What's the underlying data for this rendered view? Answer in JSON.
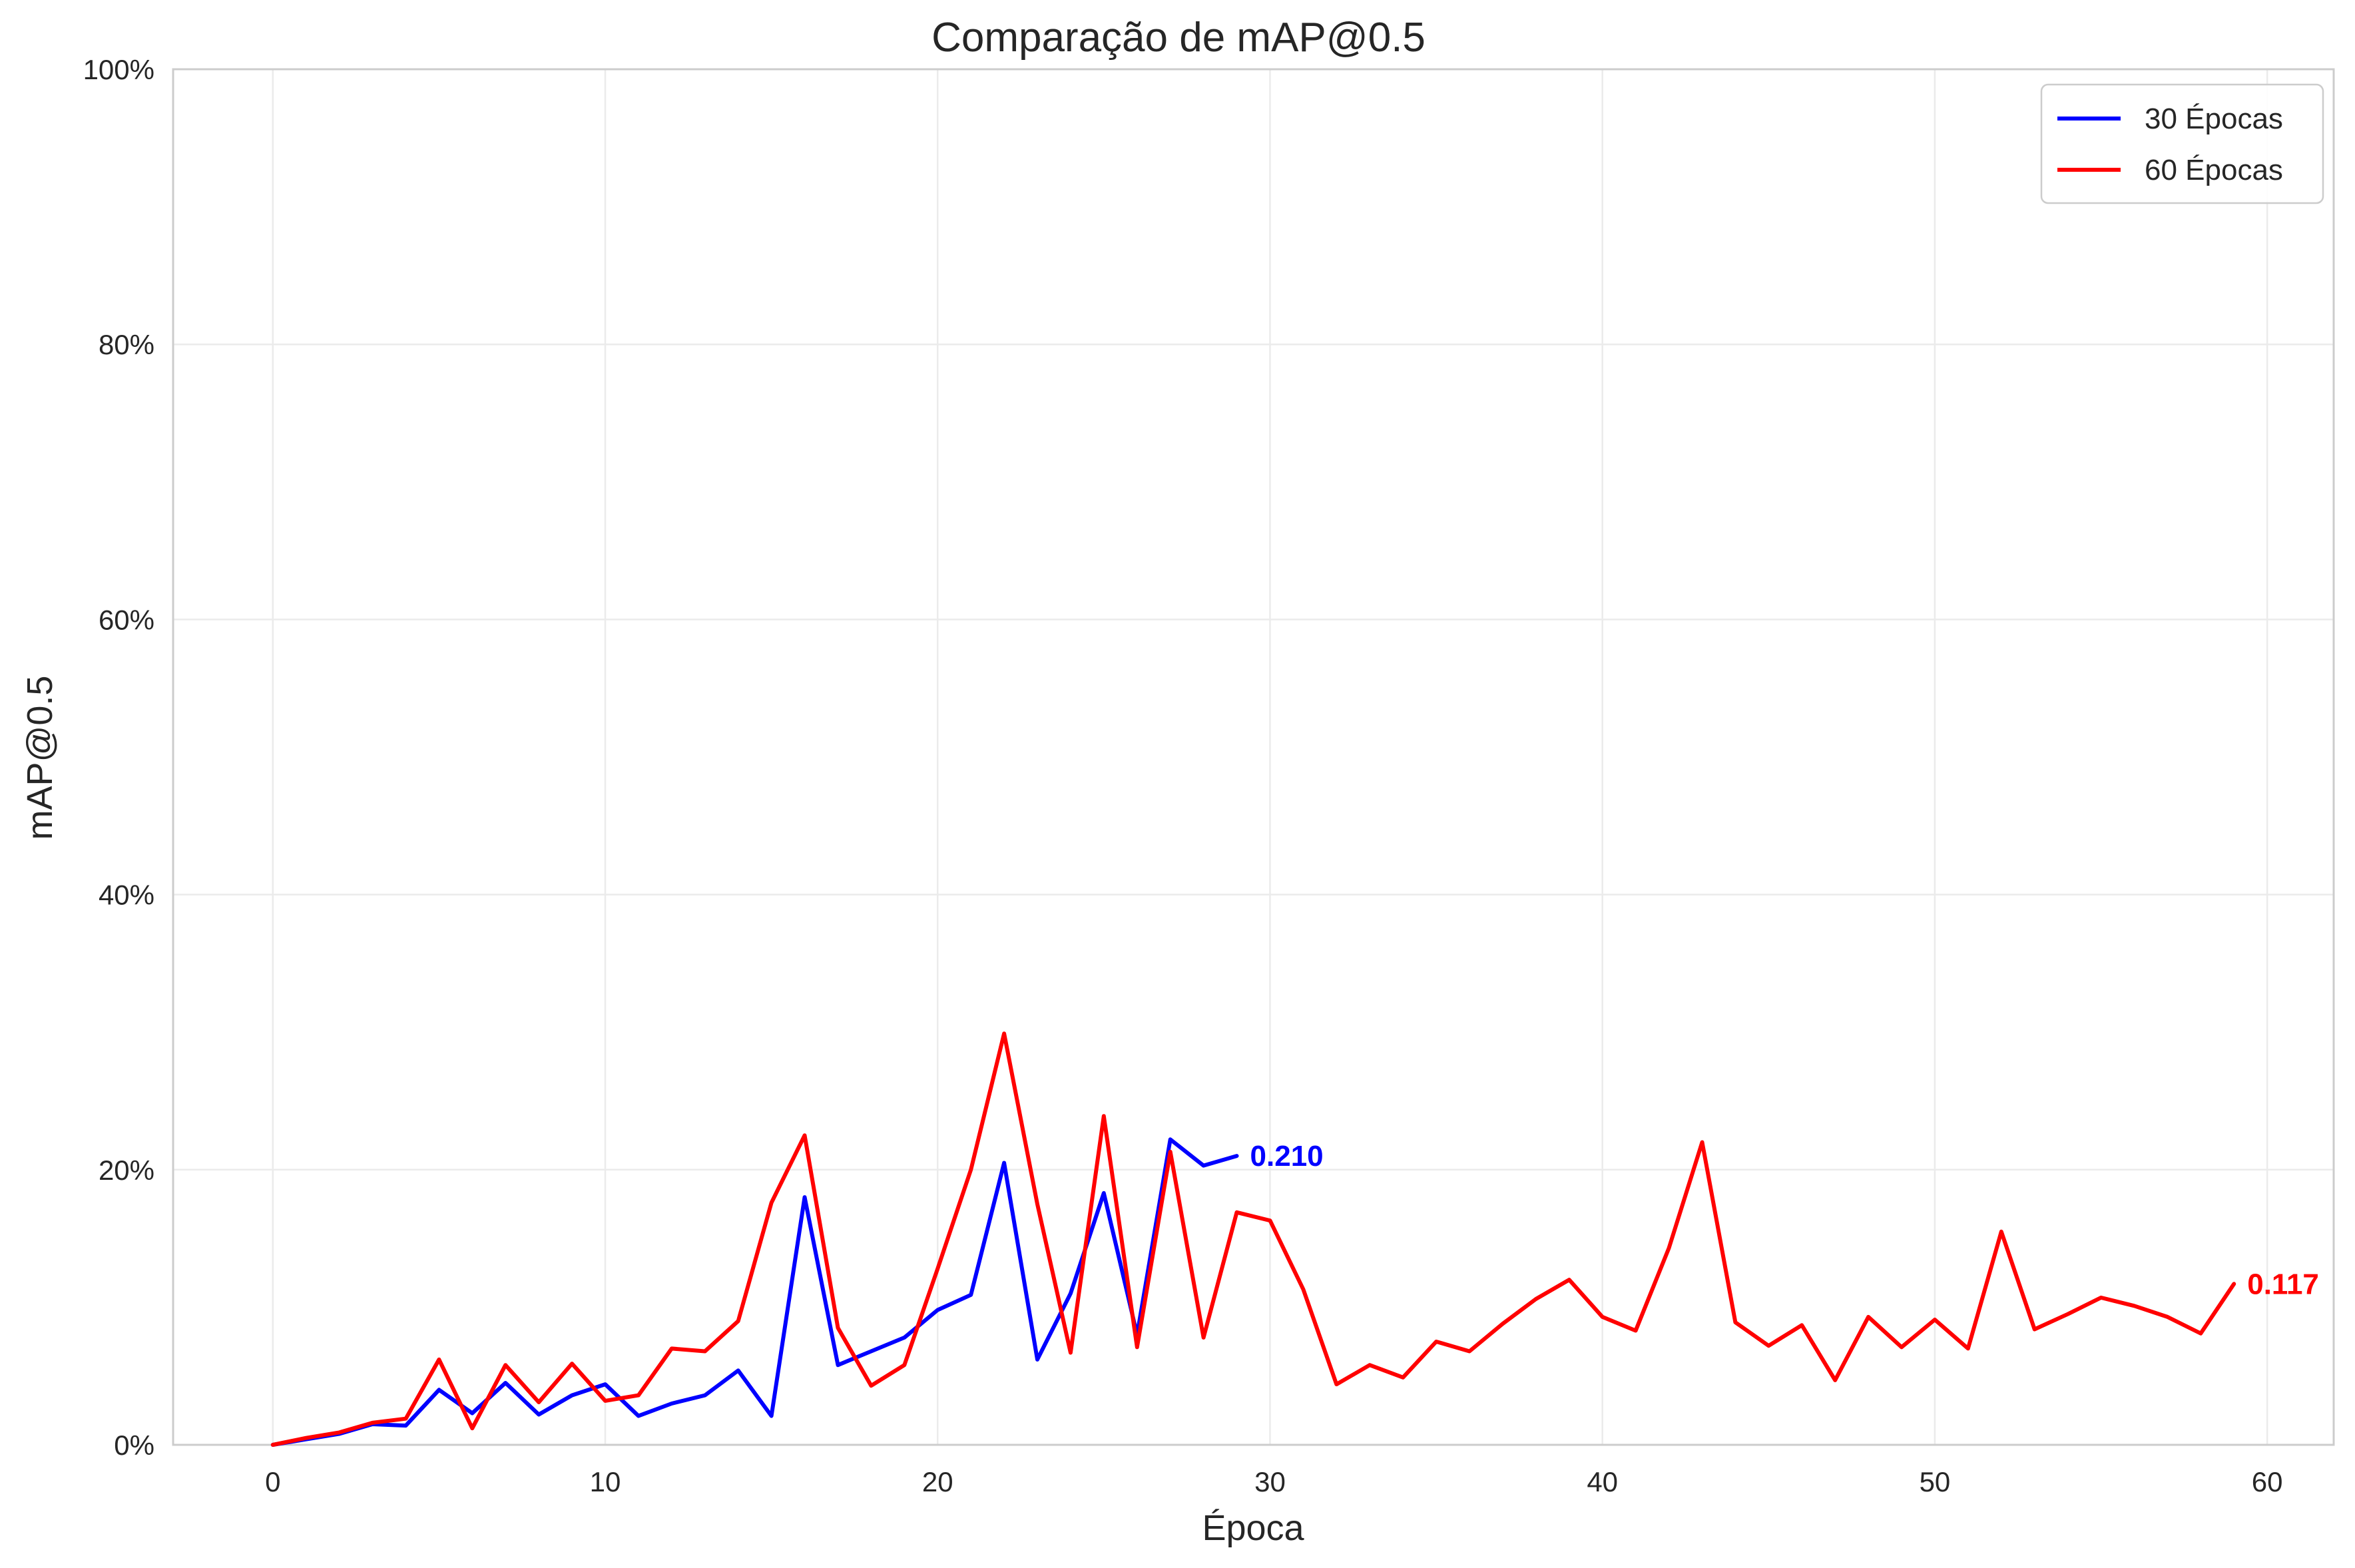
{
  "chart_data": {
    "type": "line",
    "title": "Comparação de mAP@0.5",
    "xlabel": "Época",
    "ylabel": "mAP@0.5",
    "xlim": [
      -3,
      62
    ],
    "ylim": [
      0,
      1
    ],
    "xticks": [
      0,
      10,
      20,
      30,
      40,
      50,
      60
    ],
    "xtick_labels": [
      "0",
      "10",
      "20",
      "30",
      "40",
      "50",
      "60"
    ],
    "yticks": [
      0,
      0.2,
      0.4,
      0.6,
      0.8,
      1.0
    ],
    "ytick_labels": [
      "0%",
      "20%",
      "40%",
      "60%",
      "80%",
      "100%"
    ],
    "grid": true,
    "legend_position": "top-right",
    "series": [
      {
        "name": "30 Épocas",
        "color": "#0000ff",
        "end_label": "0.210",
        "x": [
          0,
          1,
          2,
          3,
          4,
          5,
          6,
          7,
          8,
          9,
          10,
          11,
          12,
          13,
          14,
          15,
          16,
          17,
          18,
          19,
          20,
          21,
          22,
          23,
          24,
          25,
          26,
          27,
          28,
          29
        ],
        "y": [
          0.0,
          0.004,
          0.008,
          0.015,
          0.014,
          0.04,
          0.023,
          0.045,
          0.022,
          0.036,
          0.044,
          0.021,
          0.03,
          0.036,
          0.054,
          0.021,
          0.18,
          0.058,
          0.068,
          0.078,
          0.098,
          0.109,
          0.205,
          0.062,
          0.11,
          0.183,
          0.08,
          0.222,
          0.203,
          0.21
        ]
      },
      {
        "name": "60 Épocas",
        "color": "#ff0000",
        "end_label": "0.117",
        "x": [
          0,
          1,
          2,
          3,
          4,
          5,
          6,
          7,
          8,
          9,
          10,
          11,
          12,
          13,
          14,
          15,
          16,
          17,
          18,
          19,
          20,
          21,
          22,
          23,
          24,
          25,
          26,
          27,
          28,
          29,
          30,
          31,
          32,
          33,
          34,
          35,
          36,
          37,
          38,
          39,
          40,
          41,
          42,
          43,
          44,
          45,
          46,
          47,
          48,
          49,
          50,
          51,
          52,
          53,
          54,
          55,
          56,
          57,
          58,
          59
        ],
        "y": [
          0.0,
          0.005,
          0.009,
          0.016,
          0.019,
          0.062,
          0.012,
          0.058,
          0.031,
          0.059,
          0.032,
          0.036,
          0.07,
          0.068,
          0.09,
          0.176,
          0.225,
          0.085,
          0.043,
          0.058,
          0.128,
          0.2,
          0.299,
          0.175,
          0.067,
          0.239,
          0.071,
          0.213,
          0.078,
          0.169,
          0.163,
          0.113,
          0.044,
          0.058,
          0.049,
          0.075,
          0.068,
          0.088,
          0.106,
          0.12,
          0.093,
          0.083,
          0.143,
          0.22,
          0.089,
          0.072,
          0.087,
          0.047,
          0.093,
          0.071,
          0.091,
          0.07,
          0.155,
          0.084,
          0.095,
          0.107,
          0.101,
          0.093,
          0.081,
          0.117
        ]
      }
    ]
  }
}
